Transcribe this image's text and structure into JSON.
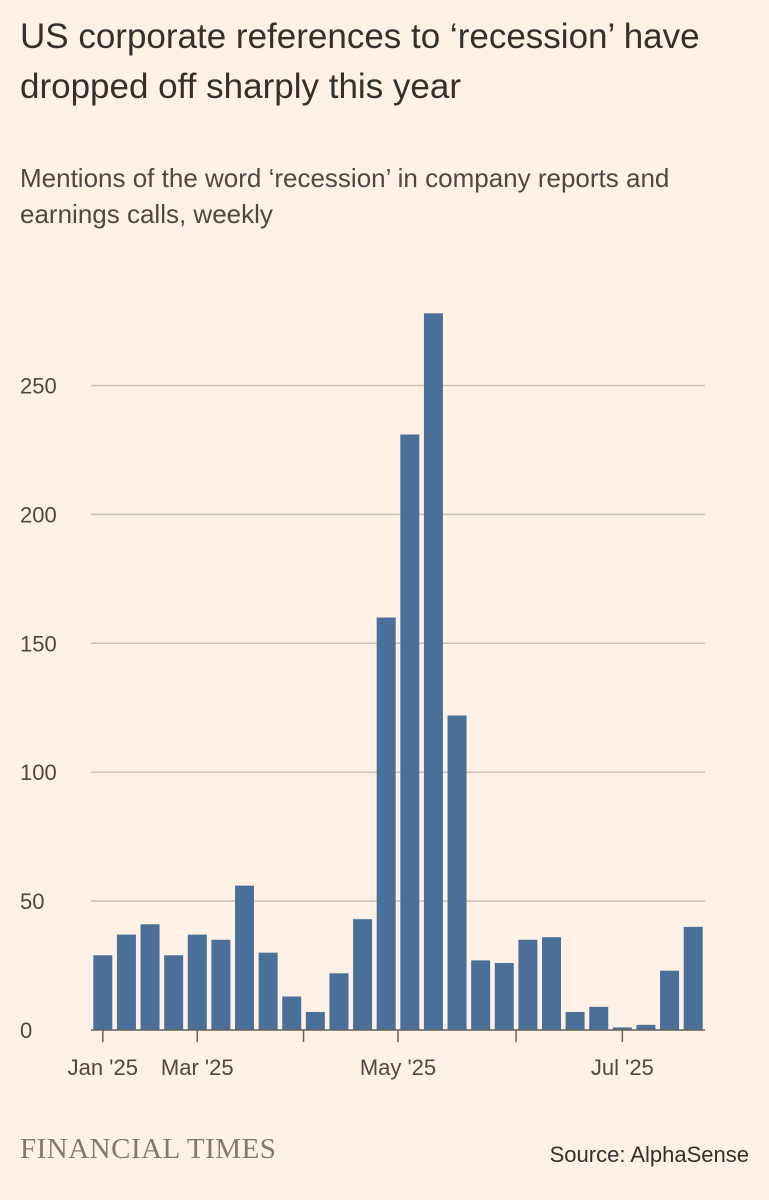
{
  "header": {
    "title": "US corporate references to ‘recession’ have dropped off sharply this year",
    "subtitle": "Mentions of the word ‘recession’ in company reports and earnings calls, weekly"
  },
  "footer": {
    "brand": "FINANCIAL TIMES",
    "source": "Source: AlphaSense"
  },
  "colors": {
    "background": "#fff1e5",
    "bar": "#4a6f98",
    "gridline": "#ccc1b7",
    "axis": "#66605c"
  },
  "chart_data": {
    "type": "bar",
    "title": "US corporate references to ‘recession’ have dropped off sharply this year",
    "subtitle": "Mentions of the word ‘recession’ in company reports and earnings calls, weekly",
    "xlabel": "",
    "ylabel": "",
    "ylim": [
      0,
      280
    ],
    "yticks": [
      0,
      50,
      100,
      150,
      200,
      250
    ],
    "grid": true,
    "week_index": [
      0,
      1,
      2,
      3,
      4,
      5,
      6,
      7,
      8,
      9,
      10,
      11,
      12,
      13,
      14,
      15,
      16,
      17,
      18,
      19,
      20,
      21,
      22,
      23,
      24,
      25
    ],
    "values": [
      29,
      37,
      41,
      29,
      37,
      35,
      56,
      30,
      13,
      7,
      22,
      43,
      160,
      231,
      278,
      122,
      27,
      26,
      35,
      36,
      7,
      9,
      1,
      2,
      23,
      40
    ],
    "x_ticks": [
      {
        "at": 0.5,
        "label": "Jan '25"
      },
      {
        "at": 4.5,
        "label": "Mar '25"
      },
      {
        "at": 9,
        "label": ""
      },
      {
        "at": 13,
        "label": "May '25"
      },
      {
        "at": 18,
        "label": ""
      },
      {
        "at": 22.5,
        "label": "Jul '25"
      }
    ]
  }
}
